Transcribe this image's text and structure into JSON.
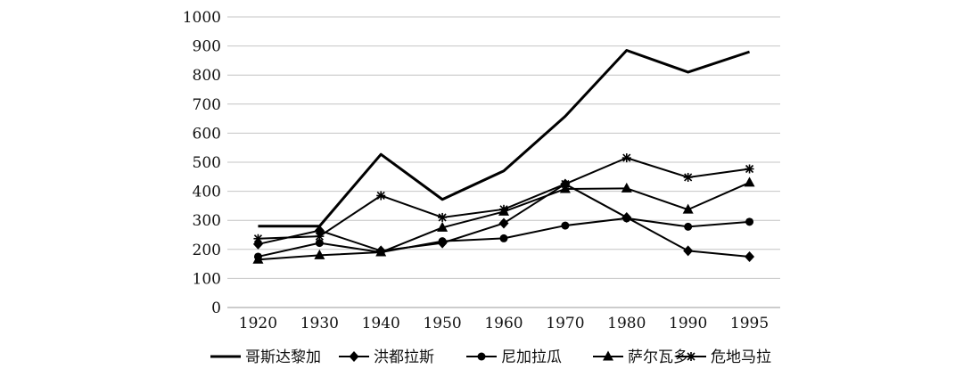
{
  "chart_data": {
    "type": "line",
    "x": [
      "1920",
      "1930",
      "1940",
      "1950",
      "1960",
      "1970",
      "1980",
      "1990",
      "1995"
    ],
    "ylim": [
      0,
      1000
    ],
    "yticks": [
      0,
      100,
      200,
      300,
      400,
      500,
      600,
      700,
      800,
      900,
      1000
    ],
    "grid": "horizontal",
    "legend_position": "bottom",
    "title": "",
    "xlabel": "",
    "ylabel": "",
    "series": [
      {
        "name": "哥斯达黎加",
        "marker": "none",
        "values": [
          280,
          280,
          527,
          372,
          470,
          658,
          885,
          810,
          880
        ]
      },
      {
        "name": "洪都拉斯",
        "marker": "diamond",
        "values": [
          218,
          265,
          195,
          222,
          290,
          425,
          310,
          195,
          175
        ]
      },
      {
        "name": "尼加拉瓜",
        "marker": "circle",
        "values": [
          175,
          222,
          190,
          228,
          238,
          282,
          307,
          278,
          295
        ]
      },
      {
        "name": "萨尔瓦多",
        "marker": "triangle",
        "values": [
          165,
          180,
          190,
          275,
          330,
          408,
          410,
          337,
          430
        ]
      },
      {
        "name": "危地马拉",
        "marker": "asterisk",
        "values": [
          237,
          245,
          385,
          310,
          338,
          425,
          515,
          448,
          477
        ]
      }
    ]
  }
}
